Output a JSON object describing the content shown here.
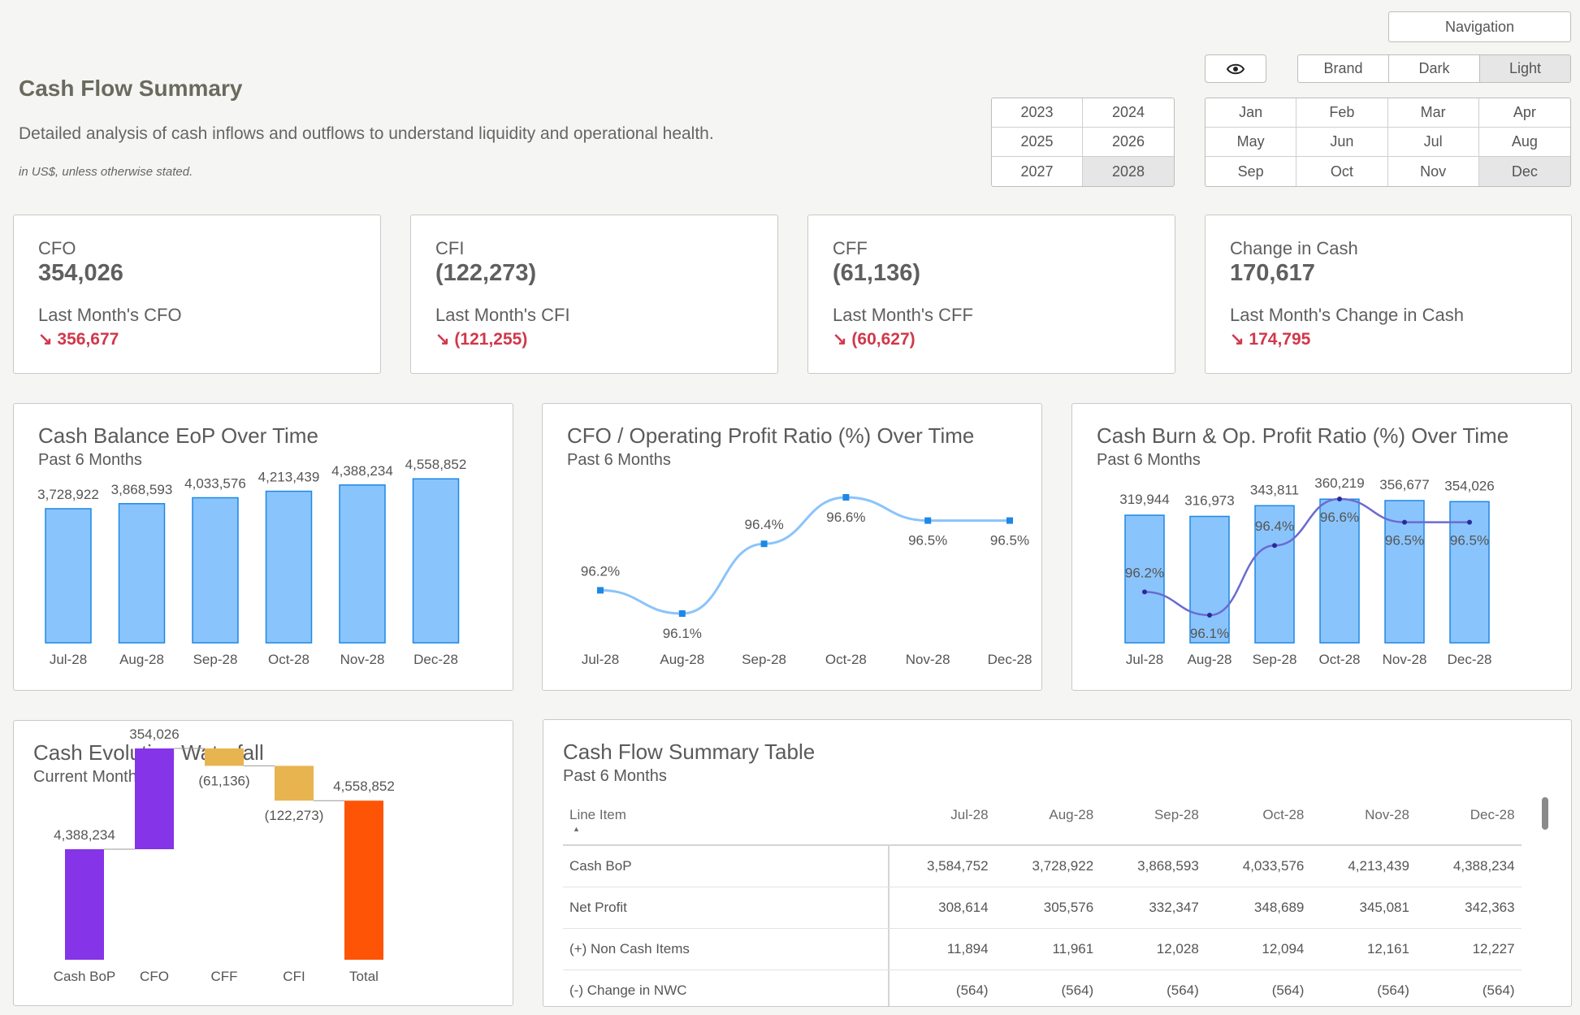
{
  "header": {
    "title": "Cash Flow Summary",
    "subtitle": "Detailed analysis of cash inflows and outflows to understand liquidity and operational health.",
    "note": "in US$, unless otherwise stated.",
    "navigation_label": "Navigation",
    "themes": [
      "Brand",
      "Dark",
      "Light"
    ],
    "selected_theme": "Light"
  },
  "years": [
    "2023",
    "2024",
    "2025",
    "2026",
    "2027",
    "2028"
  ],
  "selected_year": "2028",
  "months": [
    "Jan",
    "Feb",
    "Mar",
    "Apr",
    "May",
    "Jun",
    "Jul",
    "Aug",
    "Sep",
    "Oct",
    "Nov",
    "Dec"
  ],
  "selected_month": "Dec",
  "kpis": [
    {
      "label": "CFO",
      "value": "354,026",
      "sub_label": "Last Month's CFO",
      "delta": "↘ 356,677"
    },
    {
      "label": "CFI",
      "value": "(122,273)",
      "sub_label": "Last Month's CFI",
      "delta": "↘ (121,255)"
    },
    {
      "label": "CFF",
      "value": "(61,136)",
      "sub_label": "Last Month's CFF",
      "delta": "↘ (60,627)"
    },
    {
      "label": "Change in Cash",
      "value": "170,617",
      "sub_label": "Last Month's Change in Cash",
      "delta": "↘ 174,795"
    }
  ],
  "colors": {
    "bar_fill": "#8ac4fc",
    "bar_stroke": "#1e88e5",
    "line": "#8ac4fc",
    "point": "#1e88e5",
    "burn_line": "#6b6bd0",
    "delta_neg": "#d0384a",
    "wf_purple": "#8534e8",
    "wf_orange": "#fd5406",
    "wf_neg": "#e8b450"
  },
  "charts": {
    "cash_balance": {
      "title": "Cash Balance EoP Over Time",
      "subtitle": "Past 6 Months"
    },
    "cfo_ratio": {
      "title": "CFO / Operating Profit Ratio (%) Over Time",
      "subtitle": "Past 6 Months"
    },
    "cash_burn": {
      "title": "Cash Burn & Op. Profit Ratio (%) Over Time",
      "subtitle": "Past 6 Months"
    },
    "waterfall": {
      "title": "Cash Evolution Waterfall",
      "subtitle": "Current Month"
    },
    "table": {
      "title": "Cash Flow Summary Table",
      "subtitle": "Past 6 Months"
    }
  },
  "chart_data": [
    {
      "type": "bar",
      "title": "Cash Balance EoP Over Time",
      "subtitle": "Past 6 Months",
      "categories": [
        "Jul-28",
        "Aug-28",
        "Sep-28",
        "Oct-28",
        "Nov-28",
        "Dec-28"
      ],
      "values": [
        3728922,
        3868593,
        4033576,
        4213439,
        4388234,
        4558852
      ],
      "labels": [
        "3,728,922",
        "3,868,593",
        "4,033,576",
        "4,213,439",
        "4,388,234",
        "4,558,852"
      ],
      "ylim": [
        0,
        4700000
      ]
    },
    {
      "type": "line",
      "title": "CFO / Operating Profit Ratio (%) Over Time",
      "subtitle": "Past 6 Months",
      "categories": [
        "Jul-28",
        "Aug-28",
        "Sep-28",
        "Oct-28",
        "Nov-28",
        "Dec-28"
      ],
      "values": [
        96.2,
        96.1,
        96.4,
        96.6,
        96.5,
        96.5
      ],
      "labels": [
        "96.2%",
        "96.1%",
        "96.4%",
        "96.6%",
        "96.5%",
        "96.5%"
      ]
    },
    {
      "type": "bar",
      "title": "Cash Burn & Op. Profit Ratio (%) Over Time",
      "subtitle": "Past 6 Months",
      "categories": [
        "Jul-28",
        "Aug-28",
        "Sep-28",
        "Oct-28",
        "Nov-28",
        "Dec-28"
      ],
      "values": [
        319944,
        316973,
        343811,
        360219,
        356677,
        354026
      ],
      "labels": [
        "319,944",
        "316,973",
        "343,811",
        "360,219",
        "356,677",
        "354,026"
      ],
      "ratio_values": [
        96.2,
        96.1,
        96.4,
        96.6,
        96.5,
        96.5
      ],
      "ratio_labels": [
        "96.2%",
        "96.1%",
        "96.4%",
        "96.6%",
        "96.5%",
        "96.5%"
      ],
      "ylim": [
        0,
        370000
      ]
    },
    {
      "type": "bar",
      "title": "Cash Evolution Waterfall",
      "subtitle": "Current Month",
      "categories": [
        "Cash BoP",
        "CFO",
        "CFF",
        "CFI",
        "Total"
      ],
      "values": [
        4388234,
        354026,
        -61136,
        -122273,
        4558852
      ],
      "labels": [
        "4,388,234",
        "354,026",
        "(61,136)",
        "(122,273)",
        "4,558,852"
      ]
    },
    {
      "type": "table",
      "title": "Cash Flow Summary Table",
      "subtitle": "Past 6 Months",
      "header_label": "Line Item",
      "columns": [
        "Jul-28",
        "Aug-28",
        "Sep-28",
        "Oct-28",
        "Nov-28",
        "Dec-28"
      ],
      "rows": [
        {
          "label": "Cash BoP",
          "values": [
            "3,584,752",
            "3,728,922",
            "3,868,593",
            "4,033,576",
            "4,213,439",
            "4,388,234"
          ]
        },
        {
          "label": "Net Profit",
          "values": [
            "308,614",
            "305,576",
            "332,347",
            "348,689",
            "345,081",
            "342,363"
          ]
        },
        {
          "label": "(+) Non Cash Items",
          "values": [
            "11,894",
            "11,961",
            "12,028",
            "12,094",
            "12,161",
            "12,227"
          ]
        },
        {
          "label": "(-) Change in NWC",
          "values": [
            "(564)",
            "(564)",
            "(564)",
            "(564)",
            "(564)",
            "(564)"
          ]
        }
      ]
    }
  ]
}
